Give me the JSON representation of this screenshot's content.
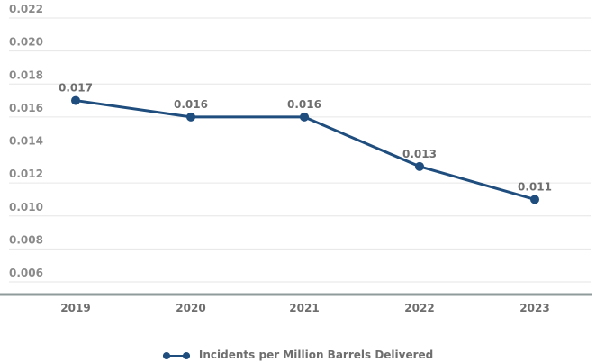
{
  "chart_data": {
    "type": "line",
    "categories": [
      "2019",
      "2020",
      "2021",
      "2022",
      "2023"
    ],
    "series": [
      {
        "name": "Incidents per Million Barrels Delivered",
        "values": [
          0.017,
          0.016,
          0.016,
          0.013,
          0.011
        ],
        "labels": [
          "0.017",
          "0.016",
          "0.016",
          "0.013",
          "0.011"
        ],
        "color": "#1f4e7e"
      }
    ],
    "yticks": [
      "0.006",
      "0.008",
      "0.010",
      "0.012",
      "0.014",
      "0.016",
      "0.018",
      "0.020",
      "0.022"
    ],
    "ylim": [
      0.006,
      0.022
    ],
    "grid": true,
    "legend_position": "bottom-center"
  }
}
